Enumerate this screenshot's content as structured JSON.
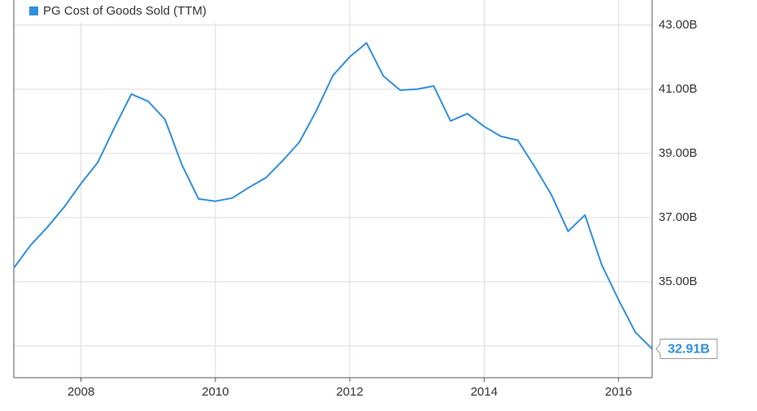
{
  "chart_data": {
    "type": "line",
    "x": [
      2007.0,
      2007.25,
      2007.5,
      2007.75,
      2008.0,
      2008.25,
      2008.5,
      2008.75,
      2009.0,
      2009.25,
      2009.5,
      2009.75,
      2010.0,
      2010.25,
      2010.5,
      2010.75,
      2011.0,
      2011.25,
      2011.5,
      2011.75,
      2012.0,
      2012.25,
      2012.5,
      2012.75,
      2013.0,
      2013.25,
      2013.5,
      2013.75,
      2014.0,
      2014.25,
      2014.5,
      2014.75,
      2015.0,
      2015.25,
      2015.5,
      2015.75,
      2016.0,
      2016.25,
      2016.5
    ],
    "series": [
      {
        "name": "PG Cost of Goods Sold (TTM)",
        "color": "#2f8fe0",
        "values": [
          35.43,
          36.14,
          36.7,
          37.33,
          38.06,
          38.72,
          39.81,
          40.85,
          40.62,
          40.06,
          38.65,
          37.58,
          37.51,
          37.61,
          37.94,
          38.24,
          38.77,
          39.35,
          40.32,
          41.43,
          42.01,
          42.44,
          41.41,
          40.97,
          41.0,
          41.1,
          40.01,
          40.24,
          39.84,
          39.53,
          39.41,
          38.59,
          37.71,
          36.57,
          37.08,
          35.53,
          34.44,
          33.43,
          32.91
        ],
        "value_labels": [
          null,
          null,
          null,
          null,
          null,
          null,
          null,
          null,
          null,
          null,
          null,
          null,
          null,
          null,
          null,
          null,
          null,
          null,
          null,
          null,
          null,
          null,
          null,
          null,
          null,
          null,
          null,
          null,
          null,
          null,
          null,
          null,
          null,
          null,
          null,
          null,
          null,
          null,
          "32.91B"
        ]
      }
    ],
    "xlim": [
      2007.0,
      2016.5
    ],
    "xticks": [
      2008,
      2010,
      2012,
      2014,
      2016
    ],
    "ylim": [
      32.01,
      43.78
    ],
    "yticks": [
      {
        "value": 33,
        "label": null
      },
      {
        "value": 35,
        "label": "35.00B"
      },
      {
        "value": 37,
        "label": "37.00B"
      },
      {
        "value": 39,
        "label": "39.00B"
      },
      {
        "value": 41,
        "label": "41.00B"
      },
      {
        "value": 43,
        "label": "43.00B"
      }
    ],
    "grid": true
  }
}
